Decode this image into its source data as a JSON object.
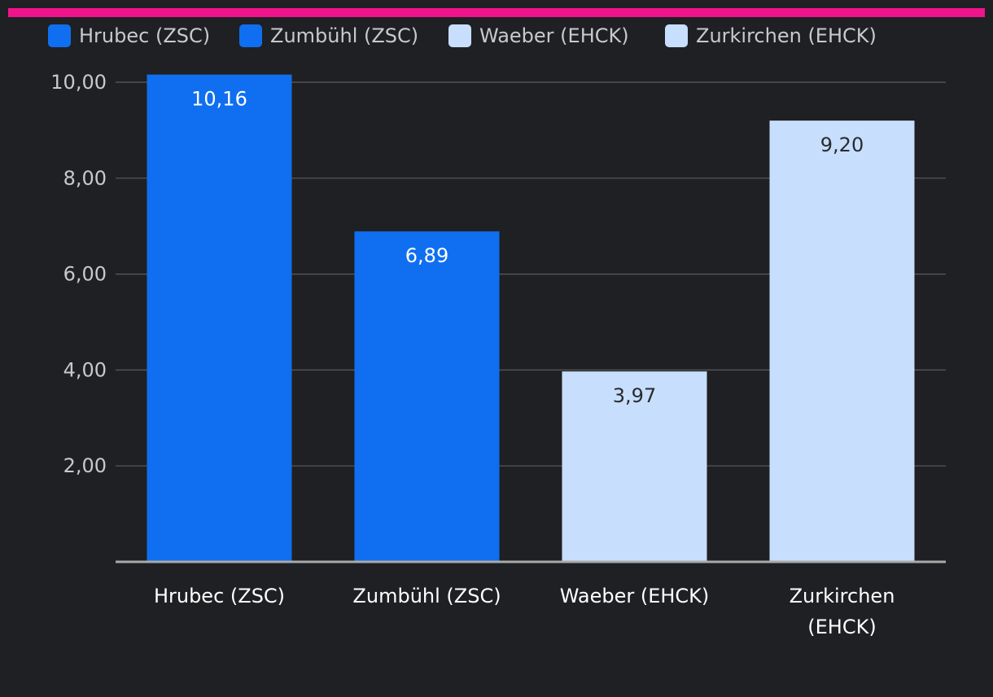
{
  "colors": {
    "background": "#1f2023",
    "accent_bar": "#f0148c",
    "grid": "#5a5b5e",
    "axis": "#aaaaaa",
    "zsc": "#0f6ff0",
    "ehck": "#c8defd"
  },
  "chart_data": {
    "type": "bar",
    "title": "",
    "xlabel": "",
    "ylabel": "",
    "ylim": [
      0,
      10
    ],
    "yticks": [
      "2,00",
      "4,00",
      "6,00",
      "8,00",
      "10,00"
    ],
    "ytick_values": [
      2,
      4,
      6,
      8,
      10
    ],
    "legend_position": "top-left",
    "categories": [
      {
        "label": "Hrubec (ZSC)",
        "lines": [
          "Hrubec (ZSC)"
        ],
        "value": 10.16,
        "value_label": "10,16",
        "team": "zsc"
      },
      {
        "label": "Zumbühl (ZSC)",
        "lines": [
          "Zumbühl (ZSC)"
        ],
        "value": 6.89,
        "value_label": "6,89",
        "team": "zsc"
      },
      {
        "label": "Waeber (EHCK)",
        "lines": [
          "Waeber (EHCK)"
        ],
        "value": 3.97,
        "value_label": "3,97",
        "team": "ehck"
      },
      {
        "label": "Zurkirchen (EHCK)",
        "lines": [
          "Zurkirchen",
          "(EHCK)"
        ],
        "value": 9.2,
        "value_label": "9,20",
        "team": "ehck"
      }
    ],
    "legend": [
      {
        "label": "Hrubec (ZSC)",
        "team": "zsc"
      },
      {
        "label": "Zumbühl (ZSC)",
        "team": "zsc"
      },
      {
        "label": "Waeber (EHCK)",
        "team": "ehck"
      },
      {
        "label": "Zurkirchen (EHCK)",
        "team": "ehck"
      }
    ]
  }
}
